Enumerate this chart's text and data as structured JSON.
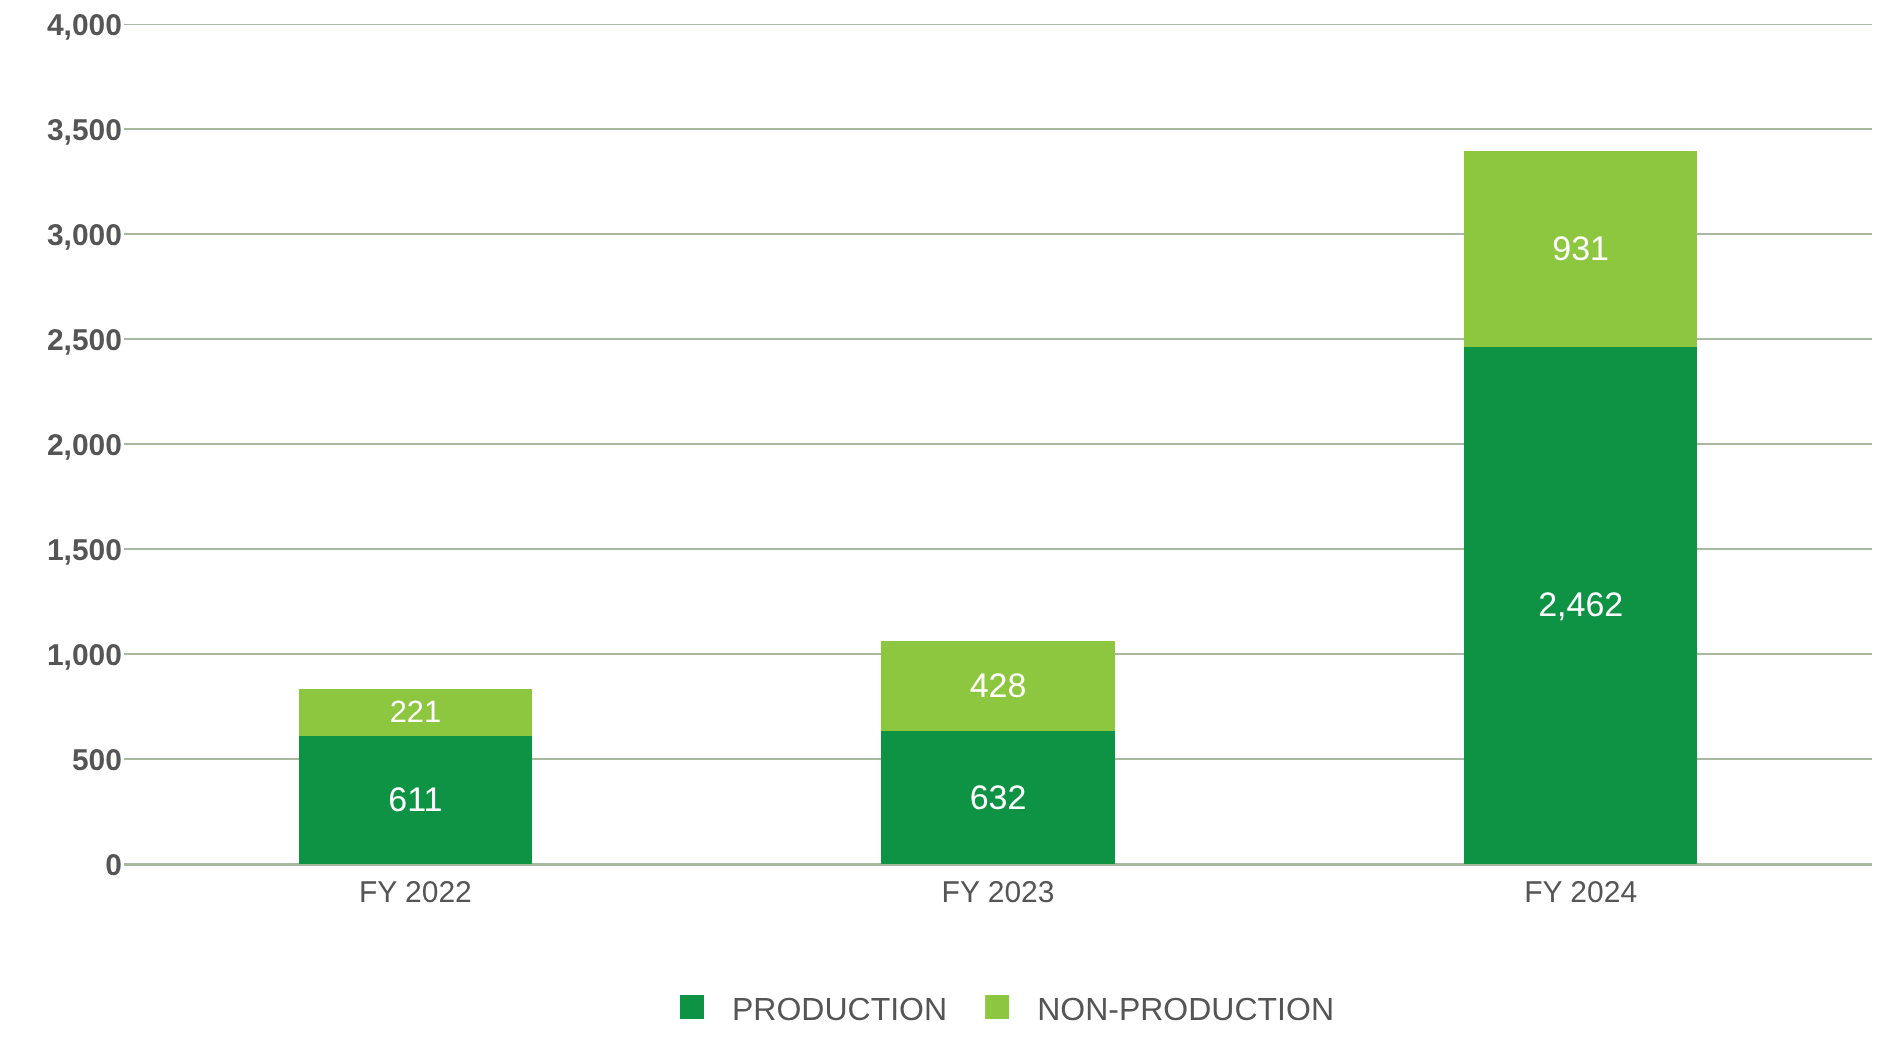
{
  "chart_data": {
    "type": "bar",
    "stacked": true,
    "categories": [
      "FY 2022",
      "FY 2023",
      "FY 2024"
    ],
    "series": [
      {
        "name": "PRODUCTION",
        "color": "#0e9345",
        "values": [
          611,
          632,
          2462
        ],
        "value_labels": [
          "611",
          "632",
          "2,462"
        ]
      },
      {
        "name": "NON-PRODUCTION",
        "color": "#8dc63f",
        "values": [
          221,
          428,
          931
        ],
        "value_labels": [
          "221",
          "428",
          "931"
        ]
      }
    ],
    "ylim": [
      0,
      4000
    ],
    "yticks": [
      {
        "value": 0,
        "label": "0"
      },
      {
        "value": 500,
        "label": "500"
      },
      {
        "value": 1000,
        "label": "1,000"
      },
      {
        "value": 1500,
        "label": "1,500"
      },
      {
        "value": 2000,
        "label": "2,000"
      },
      {
        "value": 2500,
        "label": "2,500"
      },
      {
        "value": 3000,
        "label": "3,000"
      },
      {
        "value": 3500,
        "label": "3,500"
      },
      {
        "value": 4000,
        "label": "4,000"
      }
    ],
    "grid": "y",
    "legend": "bottom"
  }
}
